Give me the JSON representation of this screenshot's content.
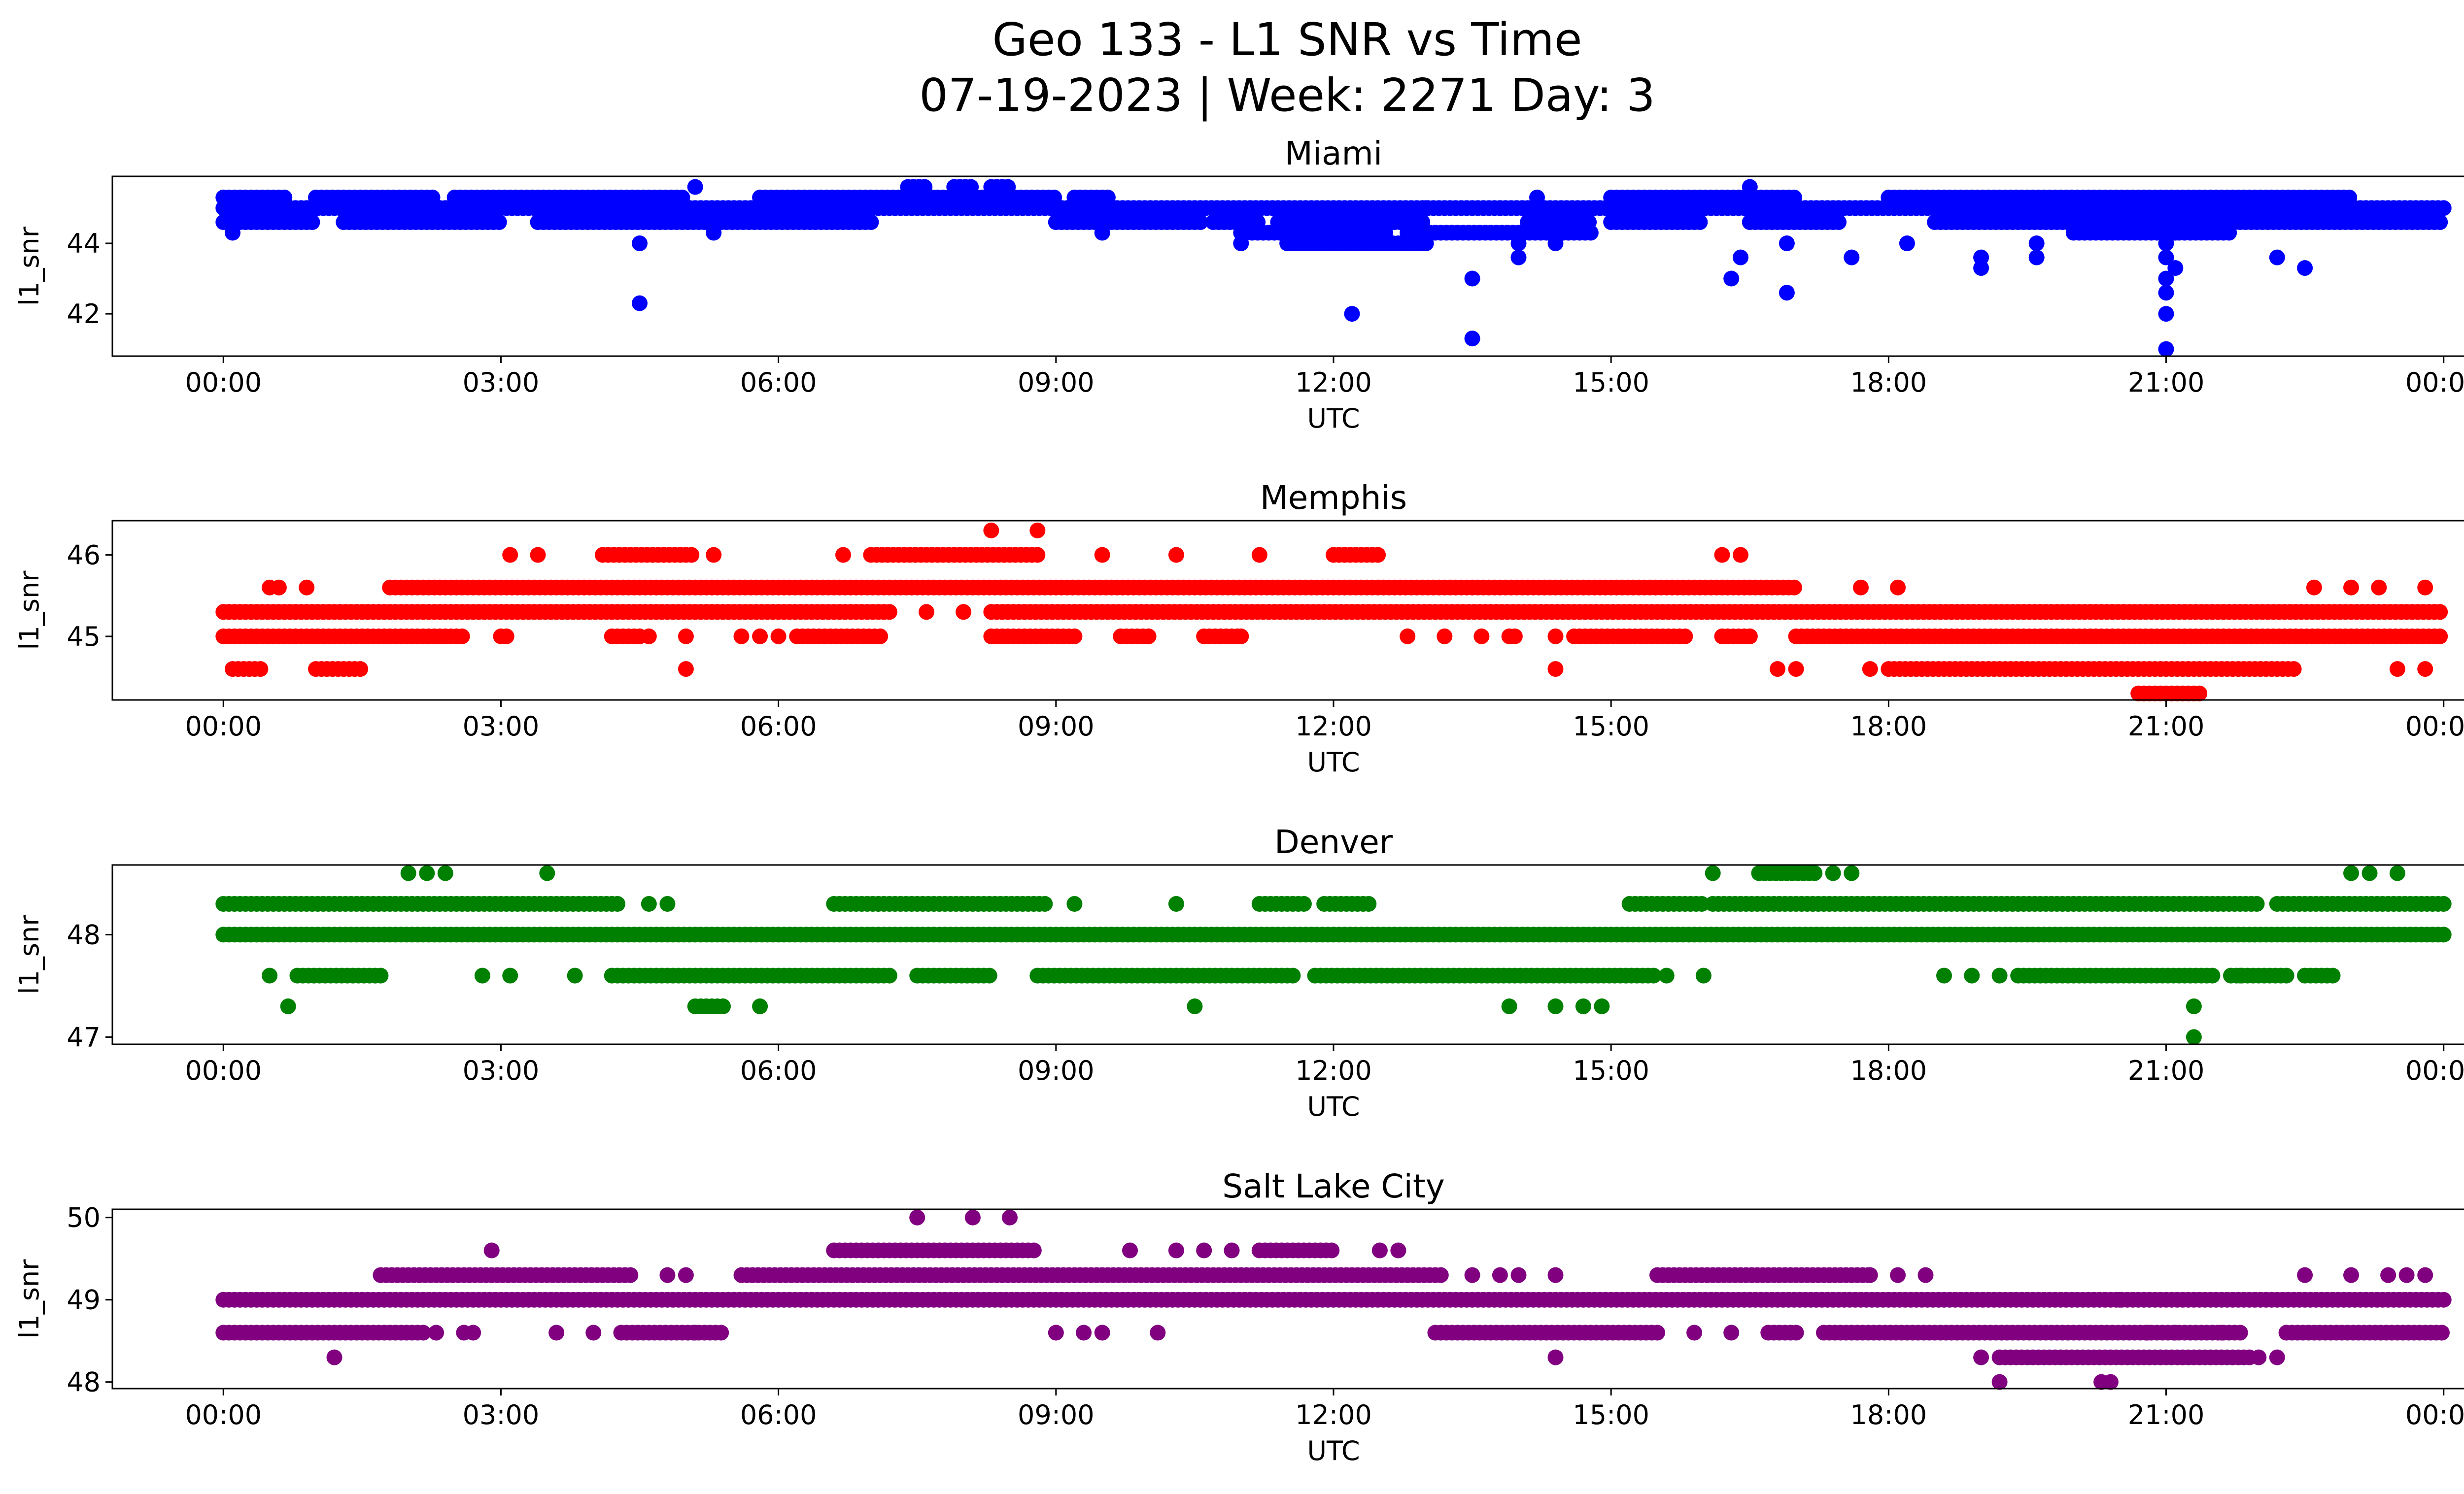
{
  "figure": {
    "title_line1": "Geo 133 - L1 SNR vs Time",
    "title_line2": "07-19-2023 | Week: 2271 Day: 3"
  },
  "chart_data": [
    {
      "type": "scatter",
      "title": "Miami",
      "xlabel": "UTC",
      "ylabel": "l1_snr",
      "color": "#0000ff",
      "x_ticks": [
        "00:00",
        "03:00",
        "06:00",
        "09:00",
        "12:00",
        "15:00",
        "18:00",
        "21:00",
        "00:00"
      ],
      "y_ticks": [
        42,
        44
      ],
      "xlim_hours": [
        -1.2,
        25.2
      ],
      "ylim": [
        40.8,
        45.9
      ],
      "bands": [
        {
          "y": 45.3,
          "segments": [
            [
              0.0,
              0.7
            ],
            [
              1.0,
              2.3
            ],
            [
              2.5,
              5.0
            ],
            [
              5.8,
              7.0
            ],
            [
              9.2,
              9.6
            ]
          ]
        },
        {
          "y": 45.0,
          "segments": [
            [
              0.0,
              16.8
            ],
            [
              16.8,
              24.0
            ]
          ]
        },
        {
          "y": 44.6,
          "segments": [
            [
              0.0,
              1.0
            ],
            [
              1.3,
              3.0
            ],
            [
              3.4,
              7.0
            ],
            [
              9.0,
              10.6
            ],
            [
              10.7,
              11.2
            ],
            [
              11.4,
              13.0
            ],
            [
              14.1,
              14.8
            ],
            [
              15.0,
              16.0
            ],
            [
              16.5,
              17.5
            ],
            [
              18.5,
              24.0
            ]
          ]
        },
        {
          "y": 44.3,
          "segments": [
            [
              11.0,
              12.6
            ],
            [
              12.8,
              14.8
            ],
            [
              20.0,
              21.7
            ]
          ]
        },
        {
          "y": 44.0,
          "segments": [
            [
              11.5,
              13.0
            ]
          ]
        },
        {
          "y": 45.3,
          "segments": [
            [
              7.0,
              9.0
            ],
            [
              15.0,
              17.0
            ],
            [
              18.0,
              23.0
            ]
          ]
        },
        {
          "y": 45.6,
          "segments": [
            [
              7.4,
              7.6
            ],
            [
              7.9,
              8.1
            ],
            [
              8.3,
              8.5
            ]
          ]
        }
      ],
      "points": [
        [
          0.1,
          44.3
        ],
        [
          0.3,
          45.0
        ],
        [
          4.5,
          42.3
        ],
        [
          4.5,
          44.0
        ],
        [
          5.1,
          45.6
        ],
        [
          5.3,
          44.3
        ],
        [
          9.5,
          44.3
        ],
        [
          11.0,
          44.0
        ],
        [
          12.2,
          42.0
        ],
        [
          12.6,
          44.0
        ],
        [
          13.0,
          45.0
        ],
        [
          13.5,
          43.0
        ],
        [
          13.5,
          41.3
        ],
        [
          13.8,
          45.0
        ],
        [
          14.0,
          43.6
        ],
        [
          14.0,
          44.0
        ],
        [
          14.2,
          45.3
        ],
        [
          14.4,
          44.0
        ],
        [
          16.3,
          43.0
        ],
        [
          16.4,
          43.6
        ],
        [
          16.5,
          45.6
        ],
        [
          16.9,
          42.6
        ],
        [
          16.9,
          44.0
        ],
        [
          17.6,
          43.6
        ],
        [
          18.2,
          44.0
        ],
        [
          19.0,
          43.6
        ],
        [
          19.0,
          43.3
        ],
        [
          19.6,
          44.0
        ],
        [
          19.6,
          43.6
        ],
        [
          21.0,
          43.6
        ],
        [
          21.0,
          44.0
        ],
        [
          21.0,
          43.0
        ],
        [
          21.0,
          42.6
        ],
        [
          21.0,
          42.0
        ],
        [
          21.0,
          41.0
        ],
        [
          21.1,
          43.3
        ],
        [
          21.1,
          44.3
        ],
        [
          22.2,
          43.6
        ],
        [
          22.5,
          43.3
        ]
      ]
    },
    {
      "type": "scatter",
      "title": "Memphis",
      "xlabel": "UTC",
      "ylabel": "l1_snr",
      "color": "#ff0000",
      "x_ticks": [
        "00:00",
        "03:00",
        "06:00",
        "09:00",
        "12:00",
        "15:00",
        "18:00",
        "21:00",
        "00:00"
      ],
      "y_ticks": [
        45,
        46
      ],
      "xlim_hours": [
        -1.2,
        25.2
      ],
      "ylim": [
        44.22,
        46.42
      ],
      "bands": [
        {
          "y": 45.3,
          "segments": [
            [
              0.0,
              7.2
            ],
            [
              8.3,
              24.0
            ]
          ]
        },
        {
          "y": 45.0,
          "segments": [
            [
              0.0,
              2.6
            ],
            [
              3.0,
              3.1
            ],
            [
              4.2,
              4.5
            ],
            [
              6.2,
              7.1
            ],
            [
              8.3,
              9.2
            ],
            [
              9.7,
              10.0
            ],
            [
              10.6,
              11.0
            ],
            [
              13.9,
              14.0
            ],
            [
              14.6,
              15.8
            ],
            [
              16.2,
              16.5
            ],
            [
              17.0,
              24.0
            ]
          ]
        },
        {
          "y": 45.6,
          "segments": [
            [
              1.8,
              17.0
            ]
          ]
        },
        {
          "y": 46.0,
          "segments": [
            [
              4.1,
              5.1
            ],
            [
              7.0,
              8.8
            ],
            [
              12.0,
              12.5
            ]
          ]
        },
        {
          "y": 44.6,
          "segments": [
            [
              0.1,
              0.4
            ],
            [
              1.0,
              1.5
            ],
            [
              18.0,
              22.4
            ]
          ]
        },
        {
          "y": 44.3,
          "segments": [
            [
              20.7,
              21.4
            ]
          ]
        }
      ],
      "points": [
        [
          0.5,
          45.6
        ],
        [
          0.6,
          45.6
        ],
        [
          0.9,
          45.6
        ],
        [
          3.1,
          46.0
        ],
        [
          3.4,
          46.0
        ],
        [
          4.6,
          45.0
        ],
        [
          5.0,
          45.0
        ],
        [
          5.0,
          44.6
        ],
        [
          5.3,
          46.0
        ],
        [
          5.6,
          45.0
        ],
        [
          5.8,
          45.0
        ],
        [
          6.0,
          45.0
        ],
        [
          6.7,
          46.0
        ],
        [
          7.6,
          45.3
        ],
        [
          8.0,
          45.3
        ],
        [
          8.3,
          46.3
        ],
        [
          8.8,
          46.3
        ],
        [
          9.5,
          46.0
        ],
        [
          10.0,
          45.0
        ],
        [
          10.3,
          46.0
        ],
        [
          11.0,
          45.0
        ],
        [
          11.2,
          46.0
        ],
        [
          12.8,
          45.0
        ],
        [
          13.2,
          45.0
        ],
        [
          13.6,
          45.0
        ],
        [
          14.4,
          44.6
        ],
        [
          14.4,
          45.0
        ],
        [
          16.2,
          46.0
        ],
        [
          16.4,
          46.0
        ],
        [
          16.5,
          45.0
        ],
        [
          16.8,
          44.6
        ],
        [
          17.0,
          44.6
        ],
        [
          17.7,
          45.6
        ],
        [
          17.8,
          44.6
        ],
        [
          18.1,
          45.6
        ],
        [
          22.6,
          45.6
        ],
        [
          23.0,
          45.6
        ],
        [
          23.3,
          45.6
        ],
        [
          23.5,
          44.6
        ],
        [
          23.8,
          45.6
        ],
        [
          23.8,
          44.6
        ]
      ]
    },
    {
      "type": "scatter",
      "title": "Denver",
      "xlabel": "UTC",
      "ylabel": "l1_snr",
      "color": "#008000",
      "x_ticks": [
        "00:00",
        "03:00",
        "06:00",
        "09:00",
        "12:00",
        "15:00",
        "18:00",
        "21:00",
        "00:00"
      ],
      "y_ticks": [
        47,
        48
      ],
      "xlim_hours": [
        -1.2,
        25.2
      ],
      "ylim": [
        46.93,
        48.68
      ],
      "bands": [
        {
          "y": 48.0,
          "segments": [
            [
              0.0,
              24.0
            ]
          ]
        },
        {
          "y": 48.3,
          "segments": [
            [
              0.0,
              4.3
            ],
            [
              6.6,
              8.9
            ],
            [
              11.2,
              11.7
            ],
            [
              11.9,
              12.4
            ],
            [
              15.2,
              16.0
            ],
            [
              16.1,
              22.0
            ],
            [
              22.2,
              24.0
            ]
          ]
        },
        {
          "y": 47.6,
          "segments": [
            [
              0.8,
              1.7
            ],
            [
              4.2,
              7.2
            ],
            [
              7.5,
              8.3
            ],
            [
              8.8,
              11.6
            ],
            [
              11.8,
              15.5
            ],
            [
              19.4,
              21.5
            ],
            [
              21.7,
              22.3
            ],
            [
              22.5,
              22.8
            ]
          ]
        },
        {
          "y": 47.3,
          "segments": [
            [
              5.1,
              5.4
            ]
          ]
        },
        {
          "y": 48.6,
          "segments": [
            [
              16.6,
              17.2
            ]
          ]
        }
      ],
      "points": [
        [
          0.5,
          47.6
        ],
        [
          0.7,
          47.3
        ],
        [
          2.0,
          48.6
        ],
        [
          2.2,
          48.6
        ],
        [
          2.4,
          48.6
        ],
        [
          2.8,
          47.6
        ],
        [
          3.1,
          47.6
        ],
        [
          3.5,
          48.6
        ],
        [
          3.8,
          47.6
        ],
        [
          4.6,
          48.3
        ],
        [
          4.8,
          48.3
        ],
        [
          5.8,
          47.3
        ],
        [
          9.2,
          48.3
        ],
        [
          10.3,
          48.3
        ],
        [
          10.5,
          47.3
        ],
        [
          13.9,
          47.3
        ],
        [
          14.4,
          47.3
        ],
        [
          14.7,
          47.3
        ],
        [
          14.9,
          47.3
        ],
        [
          15.6,
          47.6
        ],
        [
          16.0,
          47.6
        ],
        [
          16.1,
          48.6
        ],
        [
          17.4,
          48.6
        ],
        [
          17.6,
          48.6
        ],
        [
          18.6,
          47.6
        ],
        [
          18.9,
          47.6
        ],
        [
          19.2,
          47.6
        ],
        [
          21.3,
          47.3
        ],
        [
          21.3,
          47.0
        ],
        [
          21.8,
          47.6
        ],
        [
          23.0,
          48.6
        ],
        [
          23.2,
          48.6
        ],
        [
          23.5,
          48.6
        ]
      ]
    },
    {
      "type": "scatter",
      "title": "Salt Lake City",
      "xlabel": "UTC",
      "ylabel": "l1_snr",
      "color": "#800080",
      "x_ticks": [
        "00:00",
        "03:00",
        "06:00",
        "09:00",
        "12:00",
        "15:00",
        "18:00",
        "21:00",
        "00:00"
      ],
      "y_ticks": [
        48,
        49,
        50
      ],
      "xlim_hours": [
        -1.2,
        25.2
      ],
      "ylim": [
        47.92,
        50.1
      ],
      "bands": [
        {
          "y": 49.0,
          "segments": [
            [
              0.0,
              24.0
            ]
          ]
        },
        {
          "y": 48.6,
          "segments": [
            [
              0.0,
              2.2
            ],
            [
              4.3,
              5.4
            ],
            [
              13.1,
              15.5
            ],
            [
              16.7,
              17.0
            ],
            [
              17.3,
              21.8
            ],
            [
              22.3,
              24.0
            ]
          ]
        },
        {
          "y": 49.3,
          "segments": [
            [
              1.7,
              4.4
            ],
            [
              5.6,
              13.2
            ],
            [
              15.5,
              17.8
            ]
          ]
        },
        {
          "y": 49.6,
          "segments": [
            [
              6.6,
              8.8
            ],
            [
              11.2,
              12.0
            ]
          ]
        },
        {
          "y": 48.3,
          "segments": [
            [
              19.2,
              21.9
            ]
          ]
        }
      ],
      "points": [
        [
          1.2,
          48.3
        ],
        [
          2.3,
          48.6
        ],
        [
          2.6,
          48.6
        ],
        [
          2.7,
          48.6
        ],
        [
          2.9,
          49.6
        ],
        [
          3.6,
          48.6
        ],
        [
          4.0,
          48.6
        ],
        [
          4.8,
          49.3
        ],
        [
          5.0,
          49.3
        ],
        [
          5.1,
          48.6
        ],
        [
          7.5,
          50.0
        ],
        [
          8.1,
          50.0
        ],
        [
          8.5,
          50.0
        ],
        [
          9.0,
          48.6
        ],
        [
          9.3,
          48.6
        ],
        [
          9.5,
          48.6
        ],
        [
          9.8,
          49.6
        ],
        [
          10.1,
          48.6
        ],
        [
          10.3,
          49.6
        ],
        [
          10.6,
          49.6
        ],
        [
          10.9,
          49.6
        ],
        [
          12.5,
          49.6
        ],
        [
          12.7,
          49.6
        ],
        [
          13.5,
          49.3
        ],
        [
          13.8,
          49.3
        ],
        [
          14.0,
          49.3
        ],
        [
          14.4,
          49.3
        ],
        [
          14.4,
          48.3
        ],
        [
          15.9,
          48.6
        ],
        [
          16.3,
          48.6
        ],
        [
          17.8,
          49.3
        ],
        [
          18.1,
          49.3
        ],
        [
          18.4,
          49.3
        ],
        [
          19.0,
          48.3
        ],
        [
          19.2,
          48.0
        ],
        [
          20.3,
          48.0
        ],
        [
          20.4,
          48.0
        ],
        [
          20.5,
          49.0
        ],
        [
          20.8,
          48.6
        ],
        [
          21.1,
          48.6
        ],
        [
          21.6,
          48.6
        ],
        [
          22.0,
          48.3
        ],
        [
          22.2,
          48.3
        ],
        [
          22.5,
          49.3
        ],
        [
          23.0,
          49.3
        ],
        [
          23.4,
          49.3
        ],
        [
          23.6,
          49.3
        ],
        [
          23.8,
          49.3
        ]
      ]
    }
  ]
}
